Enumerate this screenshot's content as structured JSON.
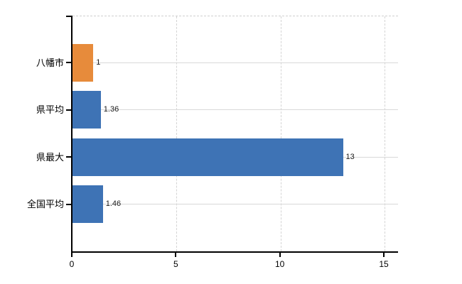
{
  "chart_data": {
    "type": "bar",
    "orientation": "horizontal",
    "title": "",
    "xlabel": "",
    "ylabel": "",
    "categories": [
      "八幡市",
      "県平均",
      "県最大",
      "全国平均"
    ],
    "values": [
      1,
      1.36,
      13,
      1.46
    ],
    "value_labels": [
      "1",
      "1.36",
      "13",
      "1.46"
    ],
    "series": [
      {
        "name": "value",
        "values": [
          1,
          1.36,
          13,
          1.46
        ],
        "bar_colors": [
          "#e78b3b",
          "#3e73b5",
          "#3e73b5",
          "#3e73b5"
        ]
      }
    ],
    "x_ticks": [
      0,
      5,
      10,
      15
    ],
    "x_tick_labels": [
      "0",
      "5",
      "10",
      "15"
    ],
    "xlim": [
      0,
      15.65
    ],
    "grid": true,
    "legend": false,
    "colors": {
      "bar_orange": "#e78b3b",
      "bar_blue": "#3e73b5",
      "gridline": "#d9d9d9",
      "axis": "#000000",
      "background": "#ffffff",
      "label_text": "#000000"
    }
  }
}
